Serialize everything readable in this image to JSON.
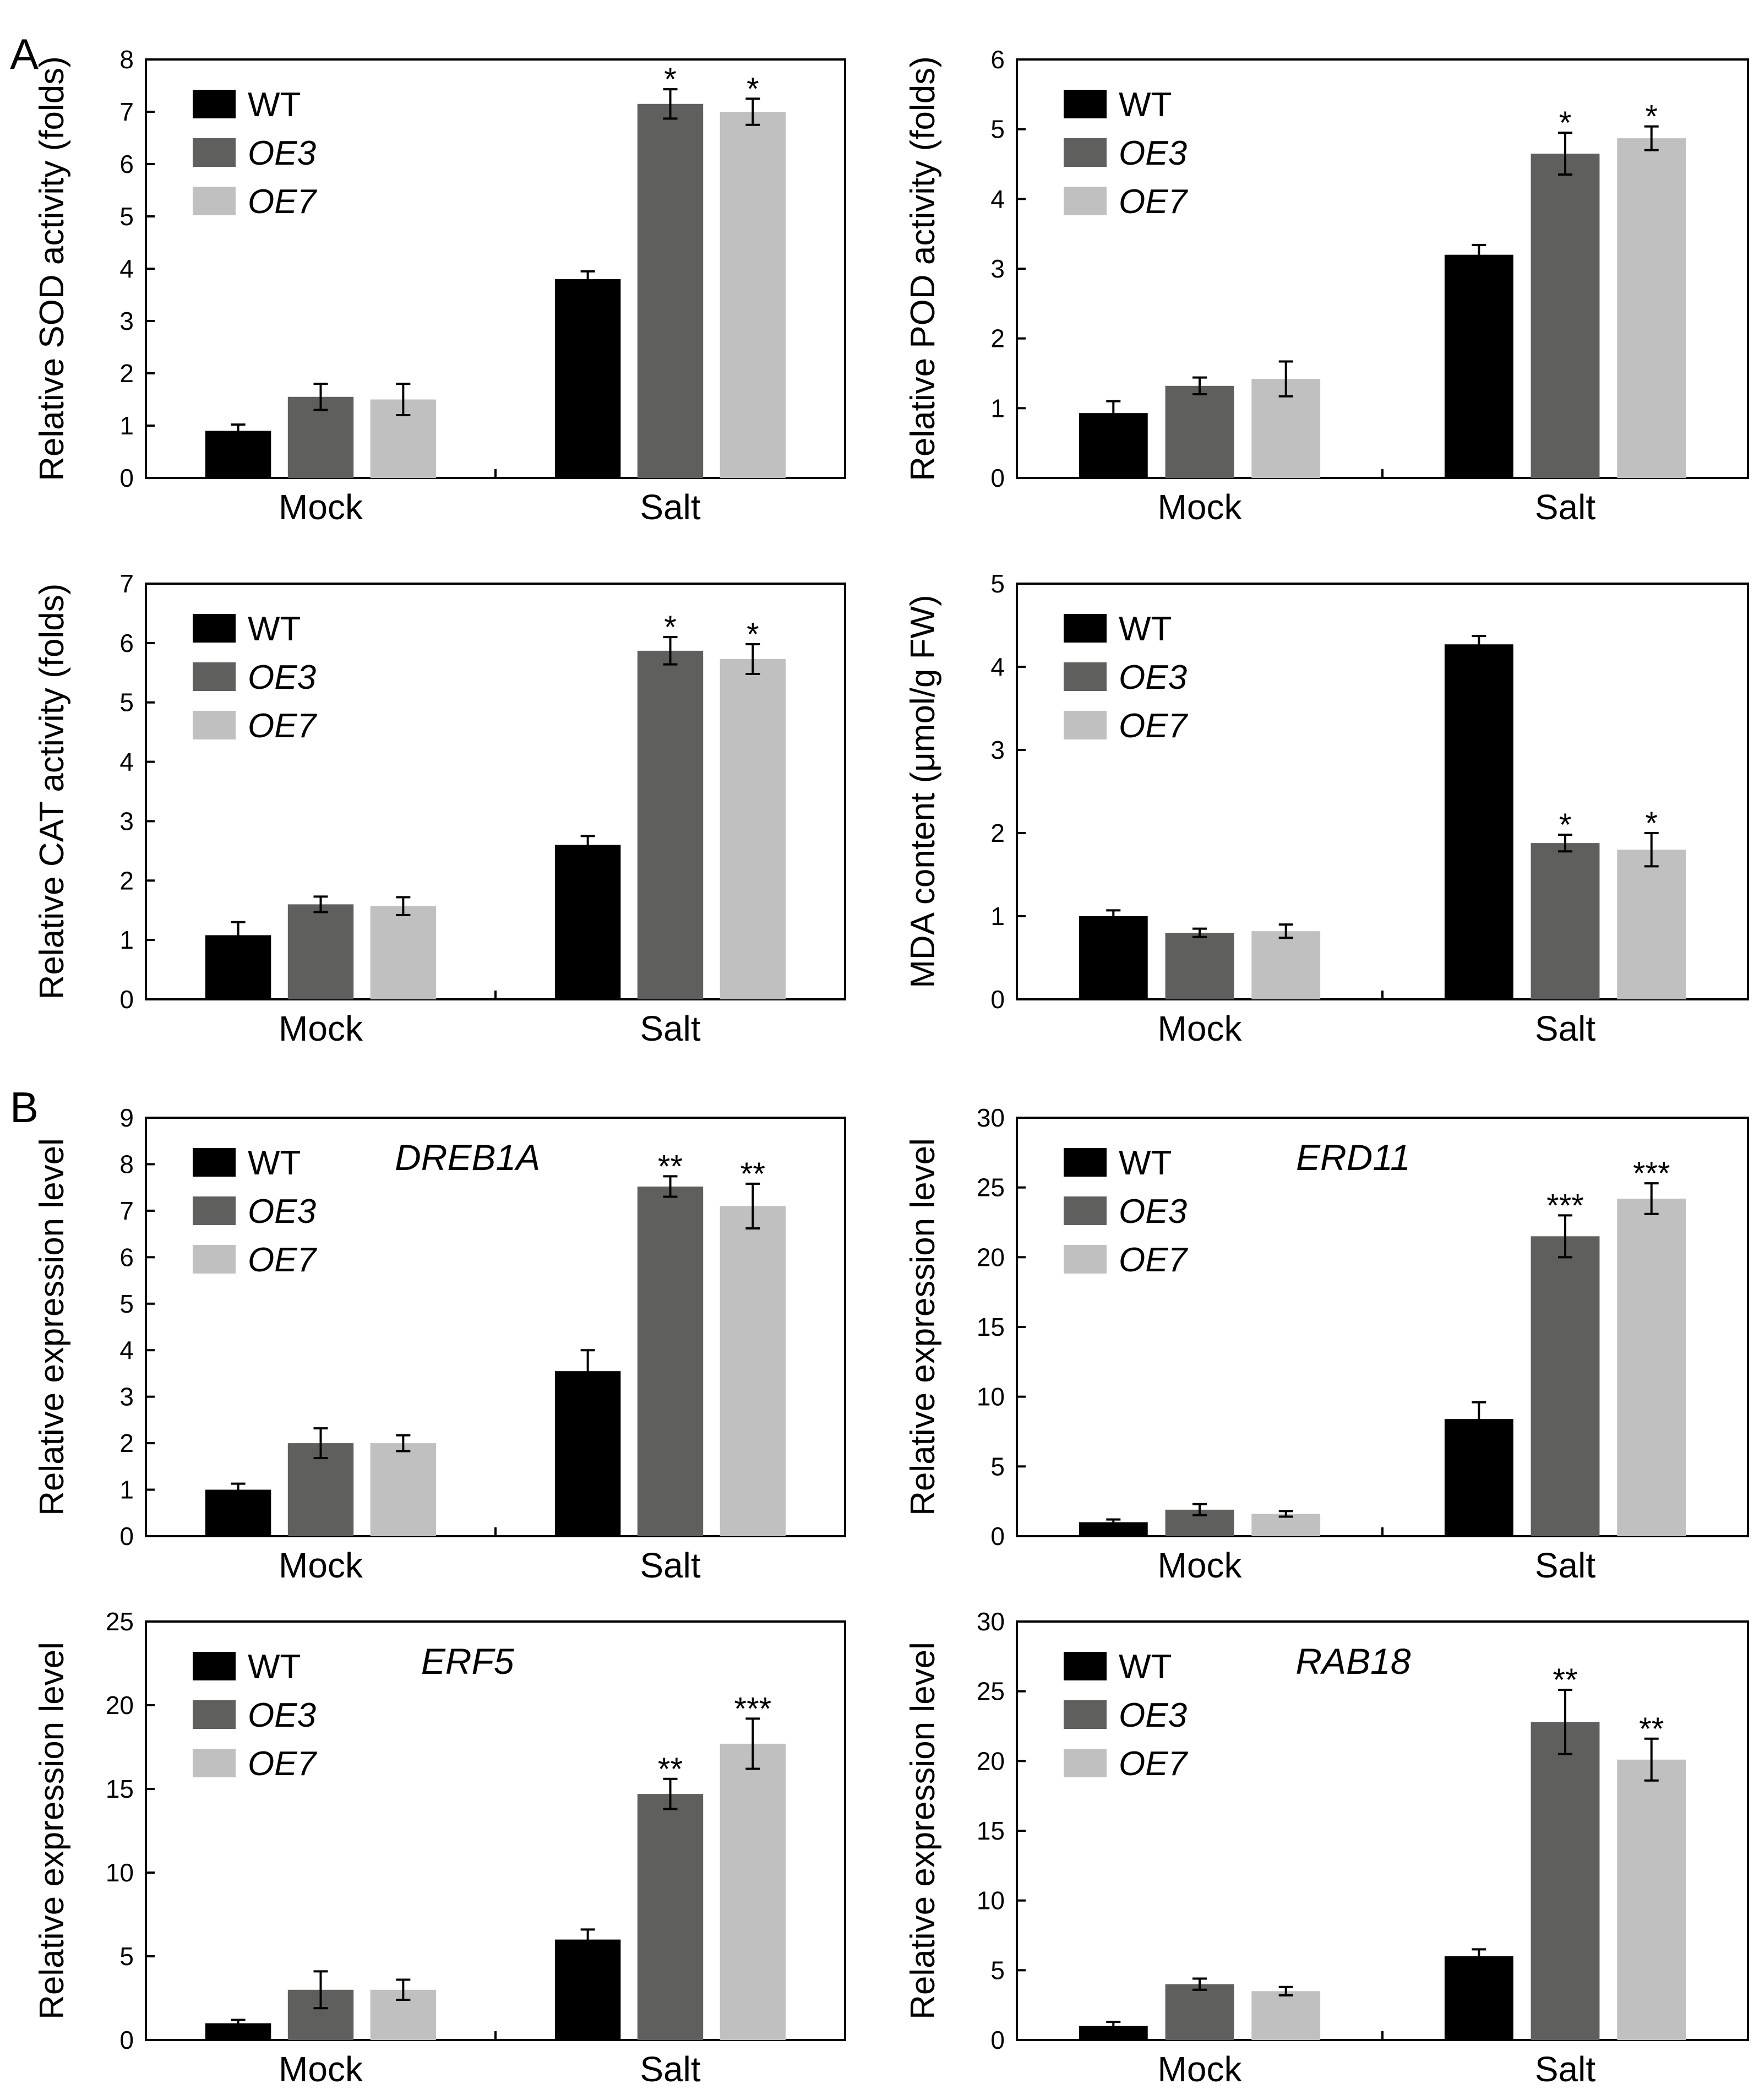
{
  "panel_labels": [
    "A",
    "B"
  ],
  "colors": {
    "WT": "#000000",
    "OE3": "#5f5f5d",
    "OE7": "#c0c0c0",
    "axis": "#000000"
  },
  "chart_data": [
    {
      "type": "bar",
      "panel": "A",
      "title": "",
      "ylabel": "Relative SOD activity (folds)",
      "categories": [
        "Mock",
        "Salt"
      ],
      "ylim": [
        0,
        8
      ],
      "yticks": [
        0,
        1,
        2,
        3,
        4,
        5,
        6,
        7,
        8
      ],
      "series": [
        {
          "name": "WT",
          "italic": false,
          "values": [
            0.9,
            3.8
          ],
          "errors": [
            0.12,
            0.15
          ],
          "sig": [
            "",
            ""
          ]
        },
        {
          "name": "OE3",
          "italic": true,
          "values": [
            1.55,
            7.15
          ],
          "errors": [
            0.25,
            0.28
          ],
          "sig": [
            "",
            "*"
          ]
        },
        {
          "name": "OE7",
          "italic": true,
          "values": [
            1.5,
            7.0
          ],
          "errors": [
            0.3,
            0.25
          ],
          "sig": [
            "",
            "*"
          ]
        }
      ]
    },
    {
      "type": "bar",
      "panel": "",
      "title": "",
      "ylabel": "Relative POD activity (folds)",
      "categories": [
        "Mock",
        "Salt"
      ],
      "ylim": [
        0,
        6
      ],
      "yticks": [
        0,
        1,
        2,
        3,
        4,
        5,
        6
      ],
      "series": [
        {
          "name": "WT",
          "italic": false,
          "values": [
            0.93,
            3.2
          ],
          "errors": [
            0.17,
            0.14
          ],
          "sig": [
            "",
            ""
          ]
        },
        {
          "name": "OE3",
          "italic": true,
          "values": [
            1.32,
            4.65
          ],
          "errors": [
            0.12,
            0.3
          ],
          "sig": [
            "",
            "*"
          ]
        },
        {
          "name": "OE7",
          "italic": true,
          "values": [
            1.42,
            4.87
          ],
          "errors": [
            0.25,
            0.17
          ],
          "sig": [
            "",
            "*"
          ]
        }
      ]
    },
    {
      "type": "bar",
      "panel": "",
      "title": "",
      "ylabel": "Relative CAT activity (folds)",
      "categories": [
        "Mock",
        "Salt"
      ],
      "ylim": [
        0,
        7
      ],
      "yticks": [
        0,
        1,
        2,
        3,
        4,
        5,
        6,
        7
      ],
      "series": [
        {
          "name": "WT",
          "italic": false,
          "values": [
            1.08,
            2.6
          ],
          "errors": [
            0.22,
            0.15
          ],
          "sig": [
            "",
            ""
          ]
        },
        {
          "name": "OE3",
          "italic": true,
          "values": [
            1.6,
            5.87
          ],
          "errors": [
            0.13,
            0.23
          ],
          "sig": [
            "",
            "*"
          ]
        },
        {
          "name": "OE7",
          "italic": true,
          "values": [
            1.57,
            5.73
          ],
          "errors": [
            0.15,
            0.25
          ],
          "sig": [
            "",
            "*"
          ]
        }
      ]
    },
    {
      "type": "bar",
      "panel": "",
      "title": "",
      "ylabel": "MDA content (μmol/g FW)",
      "categories": [
        "Mock",
        "Salt"
      ],
      "ylim": [
        0,
        5
      ],
      "yticks": [
        0,
        1,
        2,
        3,
        4,
        5
      ],
      "series": [
        {
          "name": "WT",
          "italic": false,
          "values": [
            1.0,
            4.27
          ],
          "errors": [
            0.07,
            0.1
          ],
          "sig": [
            "",
            ""
          ]
        },
        {
          "name": "OE3",
          "italic": true,
          "values": [
            0.8,
            1.88
          ],
          "errors": [
            0.05,
            0.1
          ],
          "sig": [
            "",
            "*"
          ]
        },
        {
          "name": "OE7",
          "italic": true,
          "values": [
            0.82,
            1.8
          ],
          "errors": [
            0.08,
            0.2
          ],
          "sig": [
            "",
            "*"
          ]
        }
      ]
    },
    {
      "type": "bar",
      "panel": "B",
      "title": "DREB1A",
      "ylabel": "Relative expression level",
      "categories": [
        "Mock",
        "Salt"
      ],
      "ylim": [
        0,
        9
      ],
      "yticks": [
        0,
        1,
        2,
        3,
        4,
        5,
        6,
        7,
        8,
        9
      ],
      "series": [
        {
          "name": "WT",
          "italic": false,
          "values": [
            1.0,
            3.55
          ],
          "errors": [
            0.13,
            0.45
          ],
          "sig": [
            "",
            ""
          ]
        },
        {
          "name": "OE3",
          "italic": true,
          "values": [
            2.0,
            7.52
          ],
          "errors": [
            0.32,
            0.22
          ],
          "sig": [
            "",
            "**"
          ]
        },
        {
          "name": "OE7",
          "italic": true,
          "values": [
            2.0,
            7.1
          ],
          "errors": [
            0.17,
            0.48
          ],
          "sig": [
            "",
            "**"
          ]
        }
      ]
    },
    {
      "type": "bar",
      "panel": "",
      "title": "ERD11",
      "ylabel": "Relative expression level",
      "categories": [
        "Mock",
        "Salt"
      ],
      "ylim": [
        0,
        30
      ],
      "yticks": [
        0,
        5,
        10,
        15,
        20,
        25,
        30
      ],
      "series": [
        {
          "name": "WT",
          "italic": false,
          "values": [
            1.0,
            8.4
          ],
          "errors": [
            0.2,
            1.2
          ],
          "sig": [
            "",
            ""
          ]
        },
        {
          "name": "OE3",
          "italic": true,
          "values": [
            1.9,
            21.5
          ],
          "errors": [
            0.4,
            1.5
          ],
          "sig": [
            "",
            "***"
          ]
        },
        {
          "name": "OE7",
          "italic": true,
          "values": [
            1.6,
            24.2
          ],
          "errors": [
            0.2,
            1.1
          ],
          "sig": [
            "",
            "***"
          ]
        }
      ]
    },
    {
      "type": "bar",
      "panel": "",
      "title": "ERF5",
      "ylabel": "Relative expression level",
      "categories": [
        "Mock",
        "Salt"
      ],
      "ylim": [
        0,
        25
      ],
      "yticks": [
        0,
        5,
        10,
        15,
        20,
        25
      ],
      "series": [
        {
          "name": "WT",
          "italic": false,
          "values": [
            1.0,
            6.0
          ],
          "errors": [
            0.2,
            0.6
          ],
          "sig": [
            "",
            ""
          ]
        },
        {
          "name": "OE3",
          "italic": true,
          "values": [
            3.0,
            14.7
          ],
          "errors": [
            1.1,
            0.9
          ],
          "sig": [
            "",
            "**"
          ]
        },
        {
          "name": "OE7",
          "italic": true,
          "values": [
            3.0,
            17.7
          ],
          "errors": [
            0.6,
            1.5
          ],
          "sig": [
            "",
            "***"
          ]
        }
      ]
    },
    {
      "type": "bar",
      "panel": "",
      "title": "RAB18",
      "ylabel": "Relative expression level",
      "categories": [
        "Mock",
        "Salt"
      ],
      "ylim": [
        0,
        30
      ],
      "yticks": [
        0,
        5,
        10,
        15,
        20,
        25,
        30
      ],
      "series": [
        {
          "name": "WT",
          "italic": false,
          "values": [
            1.0,
            6.0
          ],
          "errors": [
            0.3,
            0.5
          ],
          "sig": [
            "",
            ""
          ]
        },
        {
          "name": "OE3",
          "italic": true,
          "values": [
            4.0,
            22.8
          ],
          "errors": [
            0.4,
            2.3
          ],
          "sig": [
            "",
            "**"
          ]
        },
        {
          "name": "OE7",
          "italic": true,
          "values": [
            3.5,
            20.1
          ],
          "errors": [
            0.3,
            1.5
          ],
          "sig": [
            "",
            "**"
          ]
        }
      ]
    }
  ]
}
